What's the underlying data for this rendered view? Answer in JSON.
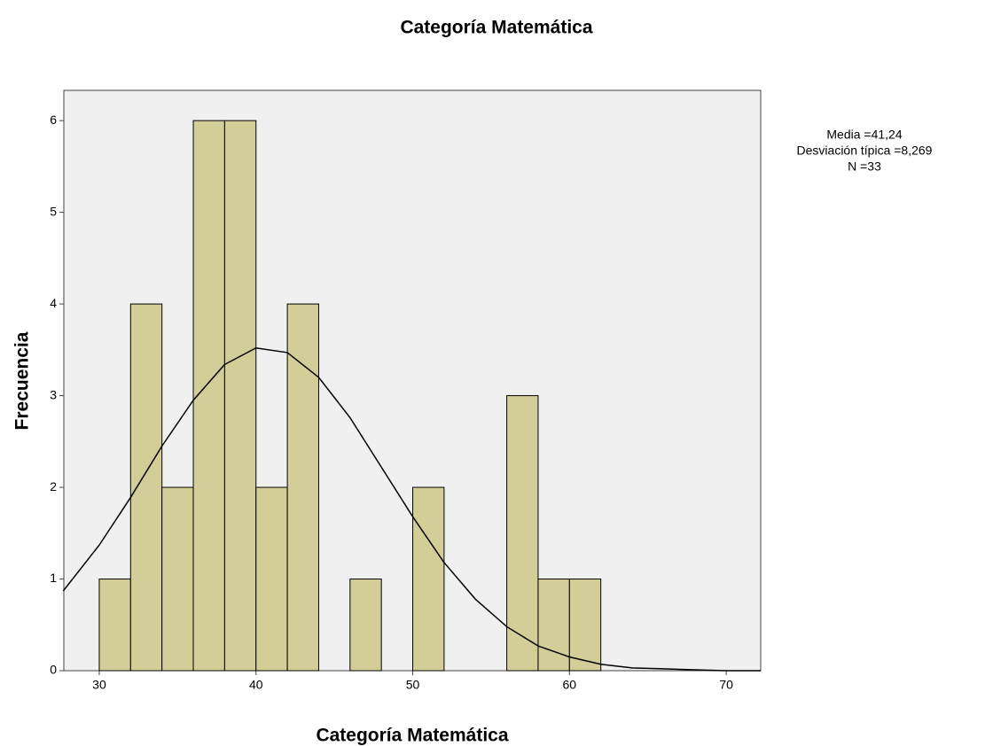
{
  "chart_data": {
    "type": "histogram",
    "title": "Categoría Matemática",
    "x_label": "Categoría Matemática",
    "y_label": "Frecuencia",
    "bins": [
      30,
      32,
      34,
      36,
      38,
      40,
      42,
      44,
      46,
      48,
      50,
      52,
      54,
      56,
      58,
      60,
      62
    ],
    "values": [
      1,
      4,
      2,
      6,
      6,
      2,
      4,
      0,
      1,
      0,
      2,
      0,
      0,
      3,
      1,
      1
    ],
    "color": "#d3ce97",
    "curve": {
      "x": [
        27.7,
        30,
        32,
        34,
        36,
        38,
        40,
        42,
        44,
        46,
        48,
        50,
        52,
        54,
        56,
        58,
        60,
        62,
        64,
        66,
        68,
        70,
        72.2
      ],
      "values": [
        0.87,
        1.37,
        1.89,
        2.45,
        2.95,
        3.34,
        3.52,
        3.47,
        3.2,
        2.76,
        2.22,
        1.68,
        1.18,
        0.78,
        0.48,
        0.27,
        0.15,
        0.07,
        0.03,
        0.02,
        0.01,
        0,
        0
      ],
      "color": "#000000"
    },
    "xlim": [
      27.74,
      72.2
    ],
    "xticks": [
      30,
      40,
      50,
      60,
      70
    ],
    "ylim": [
      0,
      6.33
    ],
    "yticks": [
      0,
      1,
      2,
      3,
      4,
      5,
      6
    ],
    "annotations": [
      "Media =41,24",
      "Desviación típica =8,269",
      "N =33"
    ]
  }
}
